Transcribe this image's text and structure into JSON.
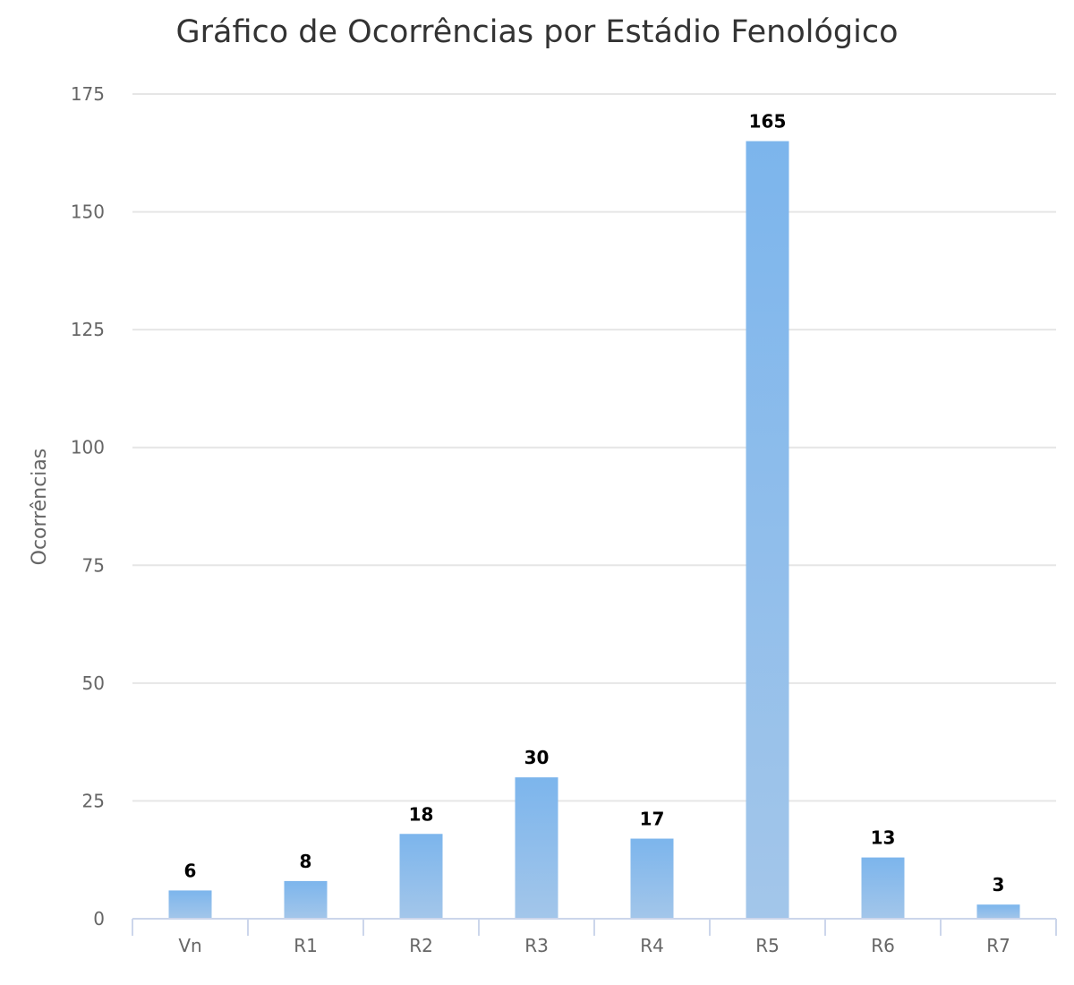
{
  "chart_data": {
    "type": "bar",
    "title": "Gráfico de Ocorrências por Estádio Fenológico",
    "xlabel": "",
    "ylabel": "Ocorrências",
    "categories": [
      "Vn",
      "R1",
      "R2",
      "R3",
      "R4",
      "R5",
      "R6",
      "R7"
    ],
    "values": [
      6,
      8,
      18,
      30,
      17,
      165,
      13,
      3
    ],
    "ylim": [
      0,
      175
    ],
    "yticks": [
      0,
      25,
      50,
      75,
      100,
      125,
      150,
      175
    ],
    "grid": true,
    "legend": "none",
    "data_labels": true,
    "colors": {
      "bar_top": "#7cb5ec",
      "bar_bottom": "#a3c6ea"
    }
  }
}
